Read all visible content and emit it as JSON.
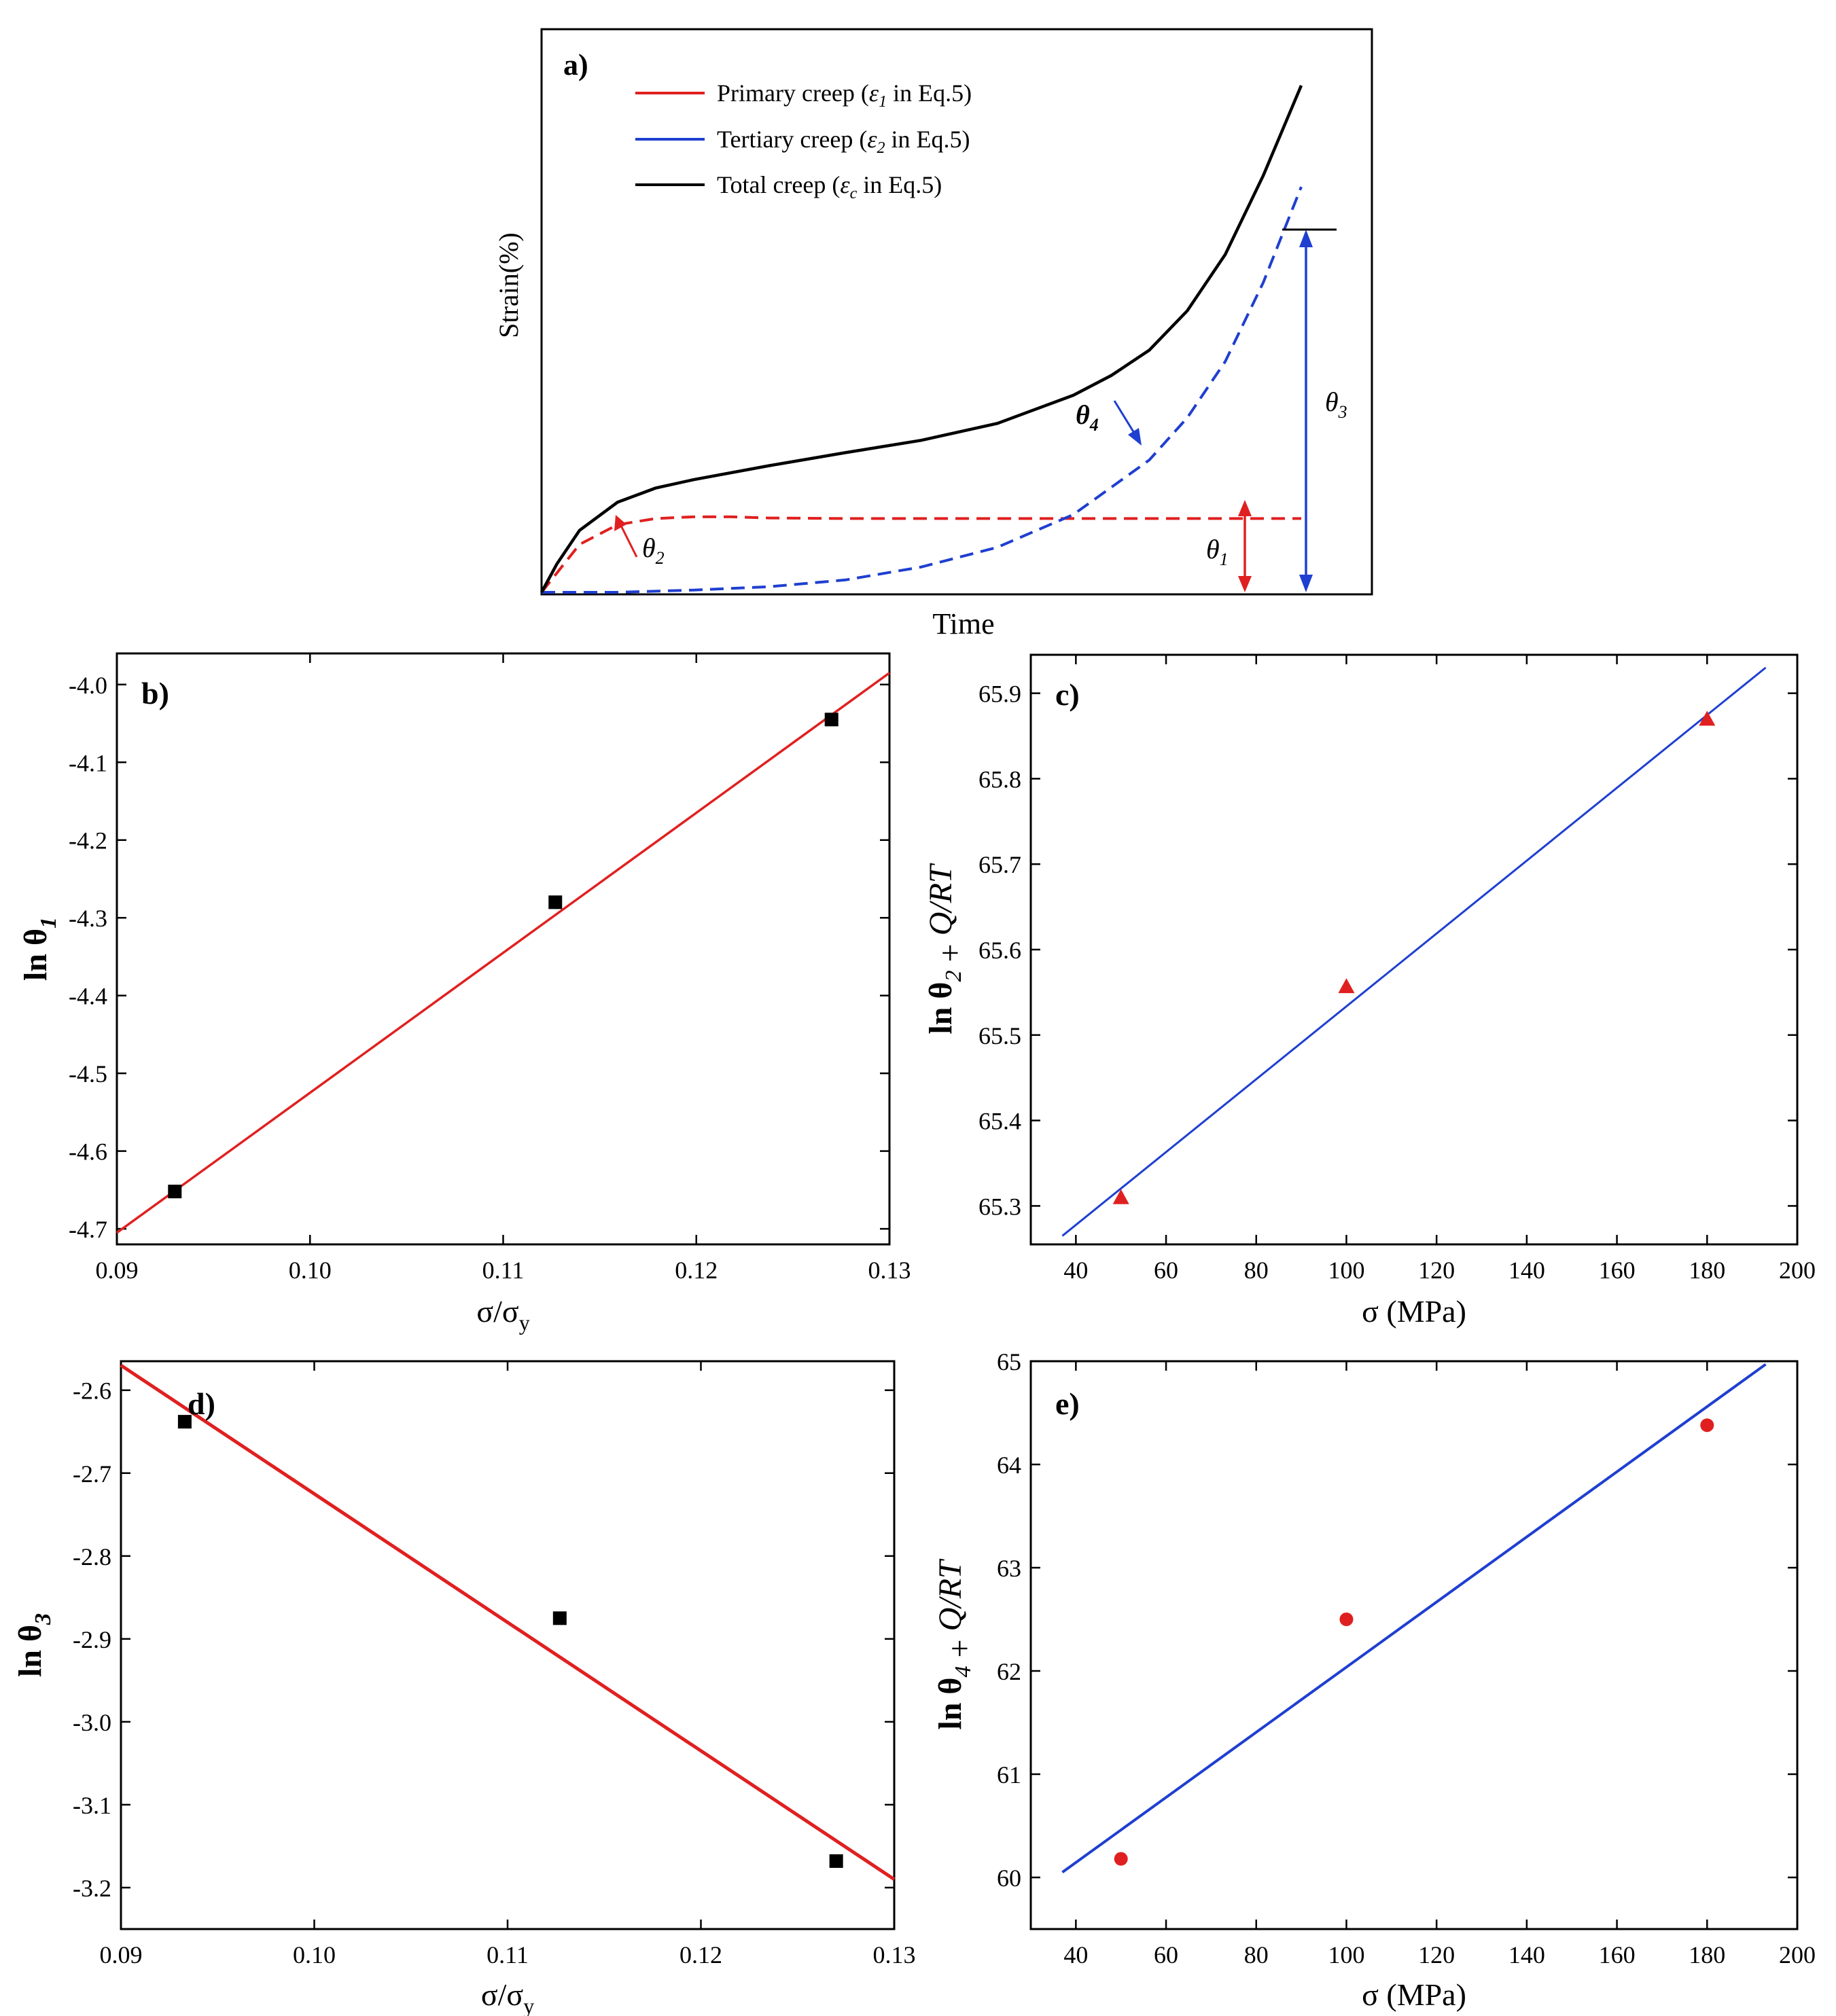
{
  "figure": {
    "panels": [
      "a",
      "b",
      "c",
      "d",
      "e"
    ]
  },
  "chart_data": [
    {
      "id": "a",
      "type": "line",
      "panel_label": "a)",
      "title": "",
      "xlabel": "Time",
      "ylabel": "Strain(%)",
      "grid": false,
      "legend_position": "top-left",
      "legend": [
        {
          "key": "primary",
          "prefix": "Primary creep (",
          "symbol": "ε",
          "sub": "1",
          "suffix": " in Eq.5)",
          "color": "#e02020",
          "style": "solid"
        },
        {
          "key": "tertiary",
          "prefix": "Tertiary creep (",
          "symbol": "ε",
          "sub": "2",
          "suffix": " in Eq.5)",
          "color": "#1f3fd0",
          "style": "solid"
        },
        {
          "key": "total",
          "prefix": "Total creep (",
          "symbol": "ε",
          "sub": "c",
          "suffix": " in Eq.5)",
          "color": "#000000",
          "style": "solid"
        }
      ],
      "series": [
        {
          "name": "Primary creep",
          "color": "#e02020",
          "dash": true,
          "x": [
            0,
            0.05,
            0.1,
            0.15,
            0.2,
            0.25,
            0.3,
            0.4,
            0.5,
            0.6,
            0.7,
            0.8,
            0.9,
            1.0
          ],
          "y": [
            0,
            0.085,
            0.12,
            0.131,
            0.134,
            0.134,
            0.132,
            0.131,
            0.131,
            0.131,
            0.131,
            0.131,
            0.131,
            0.131
          ]
        },
        {
          "name": "Tertiary creep",
          "color": "#1f3fd0",
          "dash": true,
          "x": [
            0,
            0.1,
            0.2,
            0.3,
            0.4,
            0.5,
            0.6,
            0.7,
            0.8,
            0.85,
            0.9,
            0.95,
            1.0
          ],
          "y": [
            0,
            0.0,
            0.004,
            0.01,
            0.022,
            0.045,
            0.08,
            0.138,
            0.235,
            0.31,
            0.41,
            0.55,
            0.72
          ]
        },
        {
          "name": "Total creep",
          "color": "#000000",
          "dash": false,
          "x": [
            0,
            0.02,
            0.05,
            0.1,
            0.15,
            0.2,
            0.3,
            0.4,
            0.5,
            0.6,
            0.7,
            0.75,
            0.8,
            0.85,
            0.9,
            0.95,
            1.0
          ],
          "y": [
            0,
            0.05,
            0.11,
            0.16,
            0.185,
            0.2,
            0.225,
            0.248,
            0.27,
            0.3,
            0.35,
            0.385,
            0.43,
            0.5,
            0.6,
            0.74,
            0.9
          ]
        }
      ],
      "annotations": [
        {
          "key": "theta1",
          "symbol": "θ",
          "sub": "1",
          "bold": false
        },
        {
          "key": "theta2",
          "symbol": "θ",
          "sub": "2",
          "bold": false
        },
        {
          "key": "theta3",
          "symbol": "θ",
          "sub": "3",
          "bold": false
        },
        {
          "key": "theta4",
          "symbol": "θ",
          "sub": "4",
          "bold": true
        }
      ]
    },
    {
      "id": "b",
      "type": "scatter",
      "panel_label": "b)",
      "xlabel_main": "σ/σ",
      "xlabel_sub": "y",
      "ylabel_main": "ln θ",
      "ylabel_sub": "1",
      "xlim": [
        0.09,
        0.13
      ],
      "ylim": [
        -4.72,
        -3.96
      ],
      "xticks": [
        0.09,
        0.1,
        0.11,
        0.12,
        0.13
      ],
      "xtick_labels": [
        "0.09",
        "0.10",
        "0.11",
        "0.12",
        "0.13"
      ],
      "yticks": [
        -4.7,
        -4.6,
        -4.5,
        -4.4,
        -4.3,
        -4.2,
        -4.1,
        -4.0
      ],
      "ytick_labels": [
        "-4.7",
        "-4.6",
        "-4.5",
        "-4.4",
        "-4.3",
        "-4.2",
        "-4.1",
        "-4.0"
      ],
      "points": {
        "x": [
          0.093,
          0.1127,
          0.127
        ],
        "y": [
          -4.652,
          -4.28,
          -4.045
        ]
      },
      "marker": "square",
      "marker_color": "#000000",
      "fit": {
        "x": [
          0.09,
          0.13
        ],
        "y": [
          -4.705,
          -3.985
        ]
      },
      "fit_color": "#e02020",
      "grid": false
    },
    {
      "id": "c",
      "type": "scatter",
      "panel_label": "c)",
      "xlabel": "σ (MPa)",
      "ylabel_parts": [
        {
          "t": "ln θ",
          "style": "normal"
        },
        {
          "t": "2",
          "style": "sub"
        },
        {
          "t": " + ",
          "style": "normal"
        },
        {
          "t": "Q/RT",
          "style": "italic"
        }
      ],
      "xlim": [
        30,
        200
      ],
      "ylim": [
        65.255,
        65.945
      ],
      "xticks": [
        40,
        60,
        80,
        100,
        120,
        140,
        160,
        180,
        200
      ],
      "xtick_labels": [
        "40",
        "60",
        "80",
        "100",
        "120",
        "140",
        "160",
        "180",
        "200"
      ],
      "yticks": [
        65.3,
        65.4,
        65.5,
        65.6,
        65.7,
        65.8,
        65.9
      ],
      "ytick_labels": [
        "65.3",
        "65.4",
        "65.5",
        "65.6",
        "65.7",
        "65.8",
        "65.9"
      ],
      "points": {
        "x": [
          50,
          100,
          180
        ],
        "y": [
          65.31,
          65.557,
          65.87
        ]
      },
      "marker": "triangle",
      "marker_color": "#e02020",
      "fit": {
        "x": [
          37,
          193
        ],
        "y": [
          65.265,
          65.93
        ]
      },
      "fit_color": "#1f3fd0",
      "grid": false
    },
    {
      "id": "d",
      "type": "scatter",
      "panel_label": "d)",
      "xlabel_main": "σ/σ",
      "xlabel_sub": "y",
      "ylabel_main": "ln θ",
      "ylabel_sub": "3",
      "xlim": [
        0.09,
        0.13
      ],
      "ylim": [
        -3.25,
        -2.565
      ],
      "xticks": [
        0.09,
        0.1,
        0.11,
        0.12,
        0.13
      ],
      "xtick_labels": [
        "0.09",
        "0.10",
        "0.11",
        "0.12",
        "0.13"
      ],
      "yticks": [
        -3.2,
        -3.1,
        -3.0,
        -2.9,
        -2.8,
        -2.7,
        -2.6
      ],
      "ytick_labels": [
        "-3.2",
        "-3.1",
        "-3.0",
        "-2.9",
        "-2.8",
        "-2.7",
        "-2.6"
      ],
      "points": {
        "x": [
          0.0933,
          0.1127,
          0.127
        ],
        "y": [
          -2.638,
          -2.875,
          -3.168
        ]
      },
      "marker": "square",
      "marker_color": "#000000",
      "fit": {
        "x": [
          0.09,
          0.13
        ],
        "y": [
          -2.57,
          -3.19
        ]
      },
      "fit_color": "#e02020",
      "grid": false
    },
    {
      "id": "e",
      "type": "scatter",
      "panel_label": "e)",
      "xlabel": "σ (MPa)",
      "ylabel_parts": [
        {
          "t": "ln θ",
          "style": "normal"
        },
        {
          "t": "4",
          "style": "sub"
        },
        {
          "t": " + ",
          "style": "normal"
        },
        {
          "t": "Q/RT",
          "style": "italic"
        }
      ],
      "xlim": [
        30,
        200
      ],
      "ylim": [
        59.5,
        65.0
      ],
      "xticks": [
        40,
        60,
        80,
        100,
        120,
        140,
        160,
        180,
        200
      ],
      "xtick_labels": [
        "40",
        "60",
        "80",
        "100",
        "120",
        "140",
        "160",
        "180",
        "200"
      ],
      "yticks": [
        60,
        61,
        62,
        63,
        64,
        65
      ],
      "ytick_labels": [
        "60",
        "61",
        "62",
        "63",
        "64",
        "65"
      ],
      "points": {
        "x": [
          50,
          100,
          180
        ],
        "y": [
          60.18,
          62.5,
          64.38
        ]
      },
      "marker": "circle",
      "marker_color": "#e02020",
      "fit": {
        "x": [
          37,
          193
        ],
        "y": [
          60.05,
          64.97
        ]
      },
      "fit_color": "#1f3fd0",
      "grid": false
    }
  ]
}
